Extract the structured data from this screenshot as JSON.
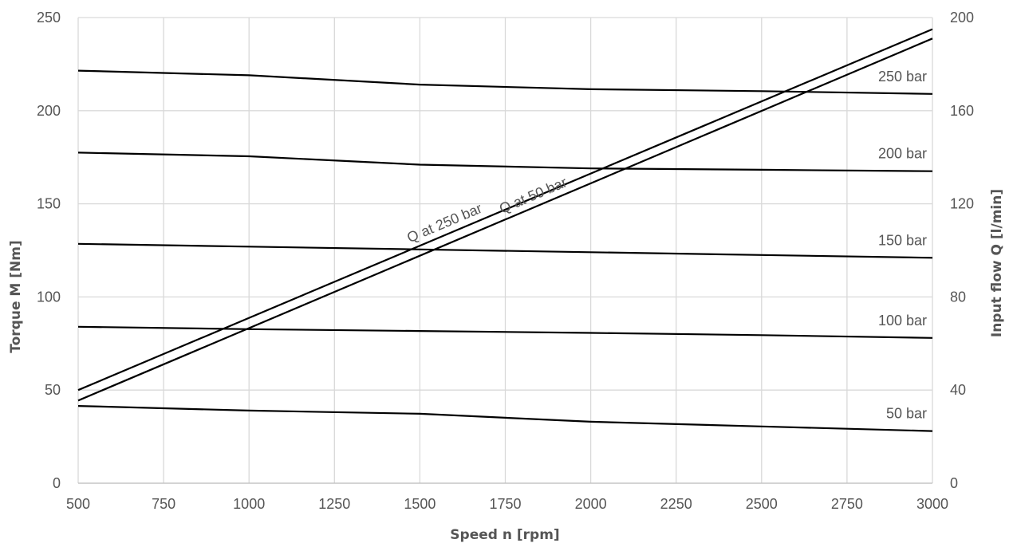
{
  "chart_data": {
    "type": "line",
    "xlabel": "Speed n [rpm]",
    "ylabel": "Torque M [Nm]",
    "y2label": "Input flow Q [l/min]",
    "xlim": [
      500,
      3000
    ],
    "ylim": [
      0,
      250
    ],
    "y2lim": [
      0,
      200
    ],
    "grid": true,
    "legend": "none",
    "xticks": [
      500,
      750,
      1000,
      1250,
      1500,
      1750,
      2000,
      2250,
      2500,
      2750,
      3000
    ],
    "yticks": [
      0,
      50,
      100,
      150,
      200,
      250
    ],
    "y2ticks": [
      0,
      40,
      80,
      120,
      160,
      200
    ],
    "series": [
      {
        "name": "250 bar",
        "axis": "left",
        "label_side": "end",
        "x": [
          500,
          1000,
          1500,
          2000,
          2500,
          3000
        ],
        "y": [
          221.5,
          219,
          214,
          211.5,
          210.5,
          209
        ]
      },
      {
        "name": "200 bar",
        "axis": "left",
        "label_side": "end",
        "x": [
          500,
          1000,
          1500,
          2000,
          2500,
          3000
        ],
        "y": [
          177.5,
          175.5,
          171,
          169,
          168.3,
          167.5
        ]
      },
      {
        "name": "150 bar",
        "axis": "left",
        "label_side": "end",
        "x": [
          500,
          1000,
          1500,
          2000,
          2500,
          3000
        ],
        "y": [
          128.5,
          127,
          125.5,
          124,
          122.5,
          121
        ]
      },
      {
        "name": "100 bar",
        "axis": "left",
        "label_side": "end",
        "x": [
          500,
          1000,
          1500,
          2000,
          2500,
          3000
        ],
        "y": [
          84,
          82.7,
          81.7,
          80.7,
          79.5,
          78
        ]
      },
      {
        "name": "50 bar",
        "axis": "left",
        "label_side": "end",
        "x": [
          500,
          1000,
          1500,
          2000,
          2500,
          3000
        ],
        "y": [
          41.5,
          39,
          37.3,
          33,
          30.5,
          28
        ]
      },
      {
        "name": "Q at 250 bar",
        "axis": "right",
        "label_side": "inline",
        "label_x": 1470,
        "x": [
          500,
          3000
        ],
        "y": [
          40,
          195
        ]
      },
      {
        "name": "Q at 50 bar",
        "axis": "right",
        "label_side": "inline",
        "label_x": 1740,
        "x": [
          500,
          3000
        ],
        "y": [
          35.5,
          191
        ]
      }
    ]
  }
}
